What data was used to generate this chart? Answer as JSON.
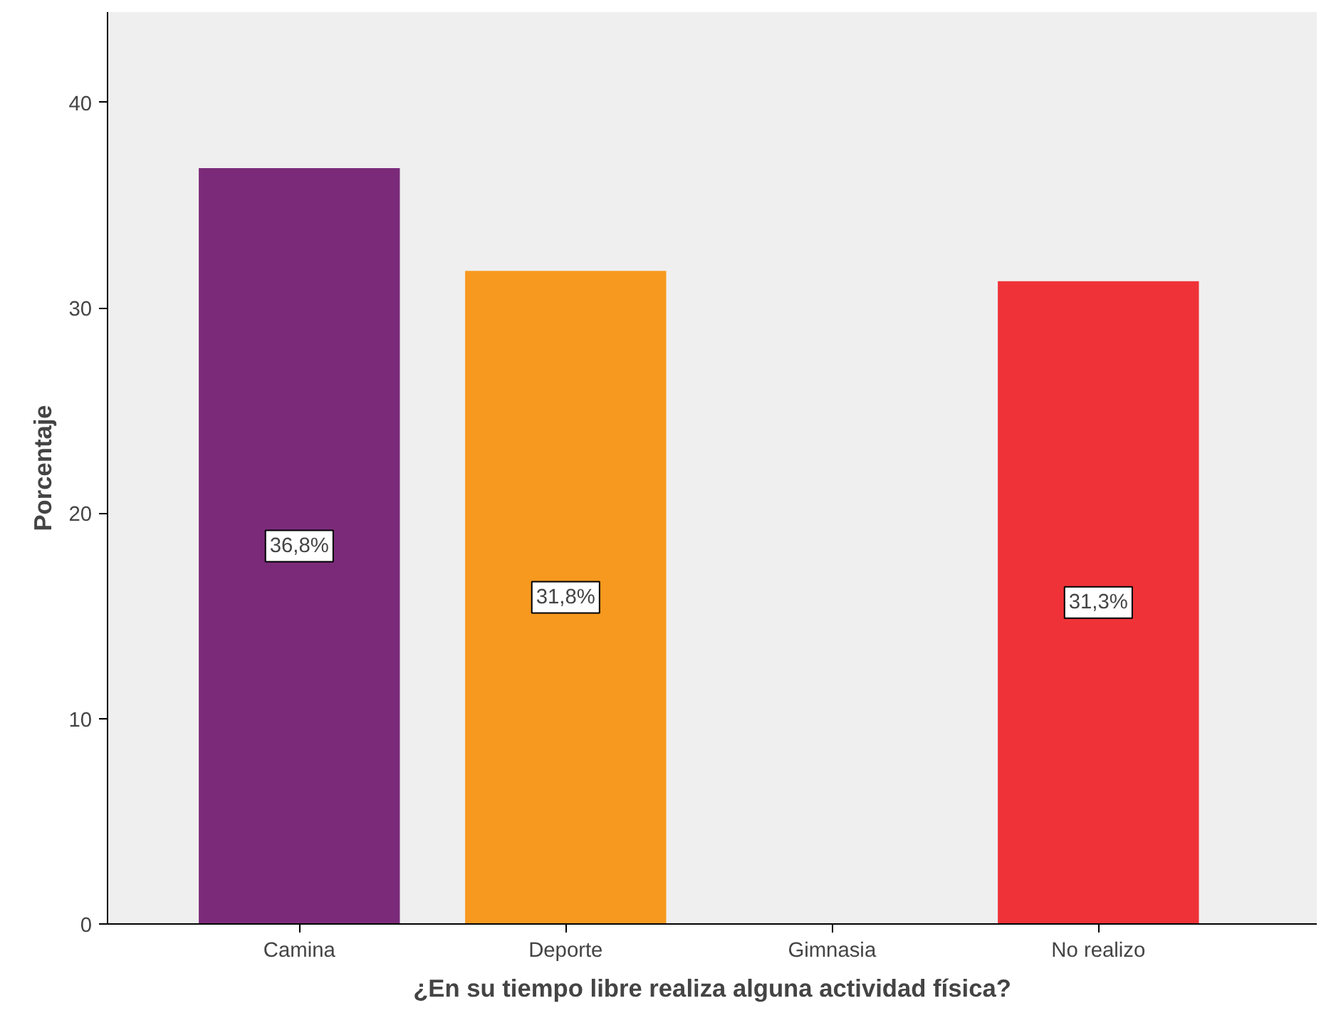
{
  "chart_data": {
    "type": "bar",
    "xlabel": "¿En su tiempo libre realiza alguna actividad física?",
    "ylabel": "Porcentaje",
    "categories": [
      "Camina",
      "Deporte",
      "Gimnasia",
      "No realizo"
    ],
    "values": [
      36.8,
      31.8,
      0,
      31.3
    ],
    "colors": [
      "#7b2a7a",
      "#f7991f",
      "#cccccc",
      "#ef3237"
    ],
    "value_labels": [
      "36,8%",
      "31,8%",
      null,
      "31,3%"
    ],
    "ylim": [
      0,
      44.4
    ],
    "yticks": [
      0,
      10,
      20,
      30,
      40
    ],
    "grid": false
  }
}
